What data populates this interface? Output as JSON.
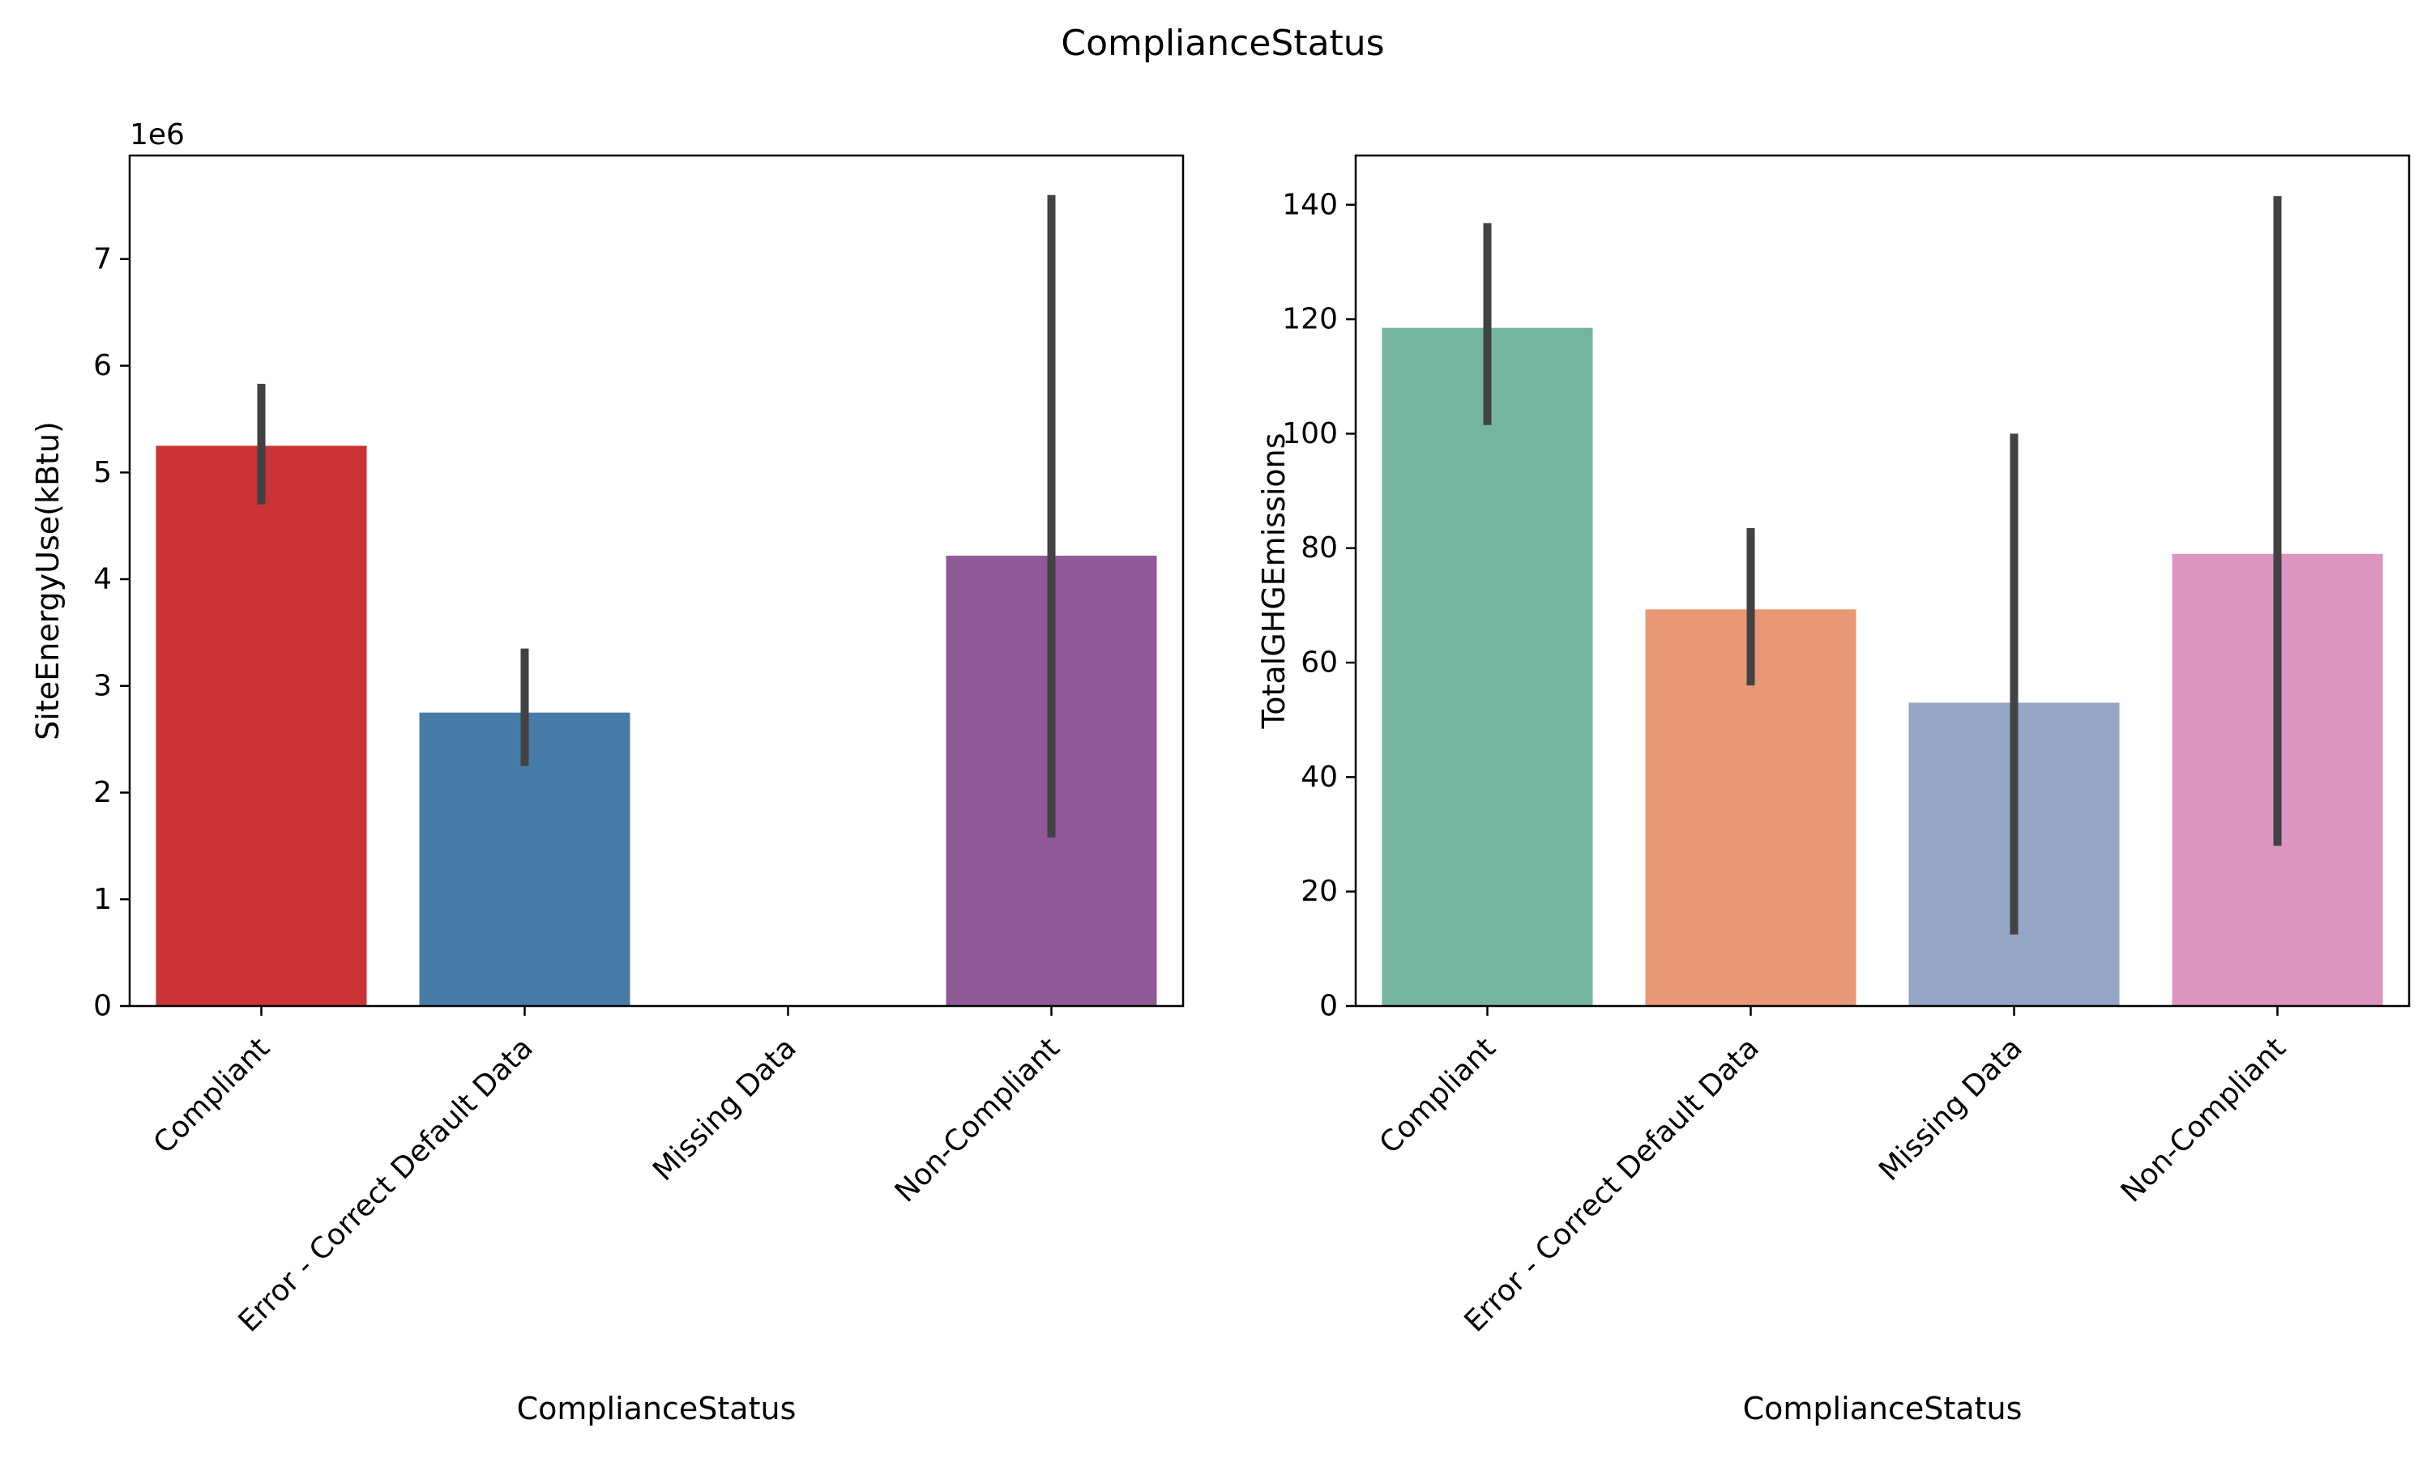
{
  "figure": {
    "suptitle": "ComplianceStatus"
  },
  "chart_data": [
    {
      "type": "bar",
      "categories": [
        "Compliant",
        "Error - Correct Default Data",
        "Missing Data",
        "Non-Compliant"
      ],
      "values": [
        5250000,
        2750000,
        0,
        4220000
      ],
      "error_low": [
        4700000,
        2250000,
        null,
        1580000
      ],
      "error_high": [
        5830000,
        3350000,
        null,
        7600000
      ],
      "colors": [
        "#cb3335",
        "#477ca8",
        "#59a257",
        "#905998"
      ],
      "xlabel": "ComplianceStatus",
      "ylabel": "SiteEnergyUse(kBtu)",
      "ylim": [
        0,
        7970000
      ],
      "yticks": [
        0,
        1000000,
        2000000,
        3000000,
        4000000,
        5000000,
        6000000,
        7000000
      ],
      "ytick_labels": [
        "0",
        "1",
        "2",
        "3",
        "4",
        "5",
        "6",
        "7"
      ],
      "offset_text": "1e6",
      "grid": false
    },
    {
      "type": "bar",
      "categories": [
        "Compliant",
        "Error - Correct Default Data",
        "Missing Data",
        "Non-Compliant"
      ],
      "values": [
        118.5,
        69.3,
        53.0,
        79.0
      ],
      "error_low": [
        101.5,
        56.0,
        12.5,
        28.0
      ],
      "error_high": [
        136.8,
        83.5,
        100.0,
        141.5
      ],
      "colors": [
        "#74b5a0",
        "#e99775",
        "#95a5c5",
        "#dc95c0"
      ],
      "xlabel": "ComplianceStatus",
      "ylabel": "TotalGHGEmissions",
      "ylim": [
        0,
        148.6
      ],
      "yticks": [
        0,
        20,
        40,
        60,
        80,
        100,
        120,
        140
      ],
      "ytick_labels": [
        "0",
        "20",
        "40",
        "60",
        "80",
        "100",
        "120",
        "140"
      ],
      "offset_text": "",
      "grid": false
    }
  ]
}
